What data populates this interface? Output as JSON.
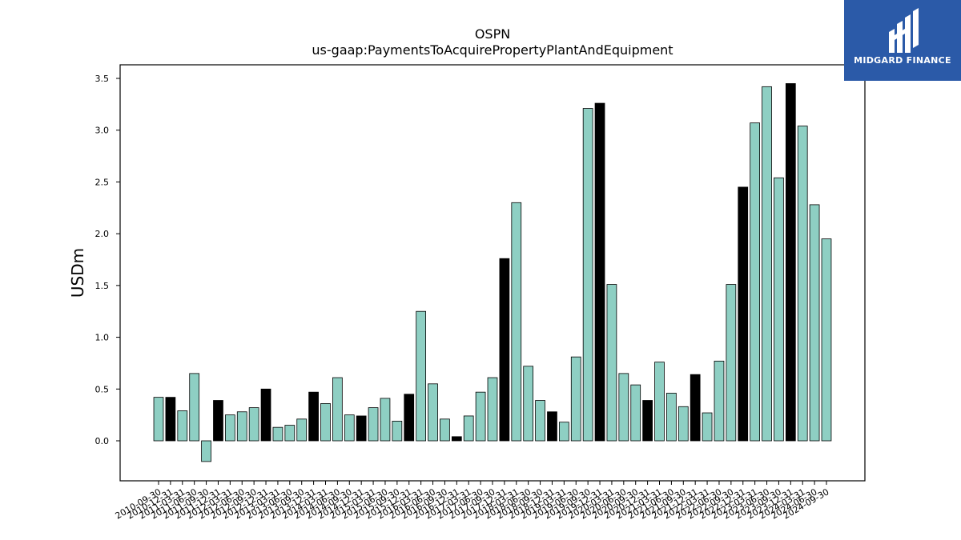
{
  "chart_data": {
    "type": "bar",
    "title": "OSPN",
    "subtitle": "us-gaap:PaymentsToAcquirePropertyPlantAndEquipment",
    "ylabel": "USDm",
    "xlabel": "",
    "ylim": [
      -0.38,
      3.62
    ],
    "yticks": [
      0.0,
      0.5,
      1.0,
      1.5,
      2.0,
      2.5,
      3.0,
      3.5
    ],
    "ytick_labels": [
      "0.0",
      "0.5",
      "1.0",
      "1.5",
      "2.0",
      "2.5",
      "3.0",
      "3.5"
    ],
    "grid": false,
    "colors": {
      "teal": "#8ecfc3",
      "black": "#000000",
      "edge": "#000000"
    },
    "categories": [
      "2010-09-30",
      "2010-12-31",
      "2011-03-31",
      "2011-06-30",
      "2011-09-30",
      "2011-12-31",
      "2012-03-31",
      "2012-06-30",
      "2012-09-30",
      "2012-12-31",
      "2013-03-31",
      "2013-06-30",
      "2013-09-30",
      "2013-12-31",
      "2014-03-31",
      "2014-06-30",
      "2014-09-30",
      "2014-12-31",
      "2015-03-31",
      "2015-06-30",
      "2015-09-30",
      "2015-12-31",
      "2016-03-31",
      "2016-06-30",
      "2016-09-30",
      "2016-12-31",
      "2017-03-31",
      "2017-06-30",
      "2017-09-30",
      "2017-12-31",
      "2018-03-31",
      "2018-06-30",
      "2018-09-30",
      "2018-12-31",
      "2019-03-31",
      "2019-06-30",
      "2019-09-30",
      "2019-12-31",
      "2020-03-31",
      "2020-06-30",
      "2020-09-30",
      "2020-12-31",
      "2021-03-31",
      "2021-06-30",
      "2021-09-30",
      "2021-12-31",
      "2022-03-31",
      "2022-06-30",
      "2022-09-30",
      "2022-12-31",
      "2023-03-31",
      "2023-06-30",
      "2023-09-30",
      "2023-12-31",
      "2024-03-31",
      "2024-06-30",
      "2024-09-30"
    ],
    "values": [
      0.42,
      0.42,
      0.29,
      0.65,
      -0.2,
      0.39,
      0.25,
      0.28,
      0.32,
      0.5,
      0.13,
      0.15,
      0.21,
      0.47,
      0.36,
      0.61,
      0.25,
      0.24,
      0.32,
      0.41,
      0.19,
      0.45,
      1.25,
      0.55,
      0.21,
      0.04,
      0.24,
      0.47,
      0.61,
      1.76,
      2.3,
      0.72,
      0.39,
      0.28,
      0.18,
      0.81,
      3.21,
      3.26,
      1.51,
      0.65,
      0.54,
      0.39,
      0.76,
      0.46,
      0.33,
      0.64,
      0.27,
      0.77,
      1.51,
      2.45,
      3.07,
      3.42,
      2.54,
      3.45,
      3.04,
      2.28,
      1.95
    ],
    "bar_colors": [
      "teal",
      "black",
      "teal",
      "teal",
      "teal",
      "black",
      "teal",
      "teal",
      "teal",
      "black",
      "teal",
      "teal",
      "teal",
      "black",
      "teal",
      "teal",
      "teal",
      "black",
      "teal",
      "teal",
      "teal",
      "black",
      "teal",
      "teal",
      "teal",
      "black",
      "teal",
      "teal",
      "teal",
      "black",
      "teal",
      "teal",
      "teal",
      "black",
      "teal",
      "teal",
      "teal",
      "black",
      "teal",
      "teal",
      "teal",
      "black",
      "teal",
      "teal",
      "teal",
      "black",
      "teal",
      "teal",
      "teal",
      "black",
      "teal",
      "teal",
      "teal",
      "black",
      "teal",
      "teal",
      "teal"
    ]
  },
  "logo": {
    "text": "MIDGARD FINANCE",
    "background": "#2b5aa8",
    "icon": "midgard-monogram-icon"
  }
}
